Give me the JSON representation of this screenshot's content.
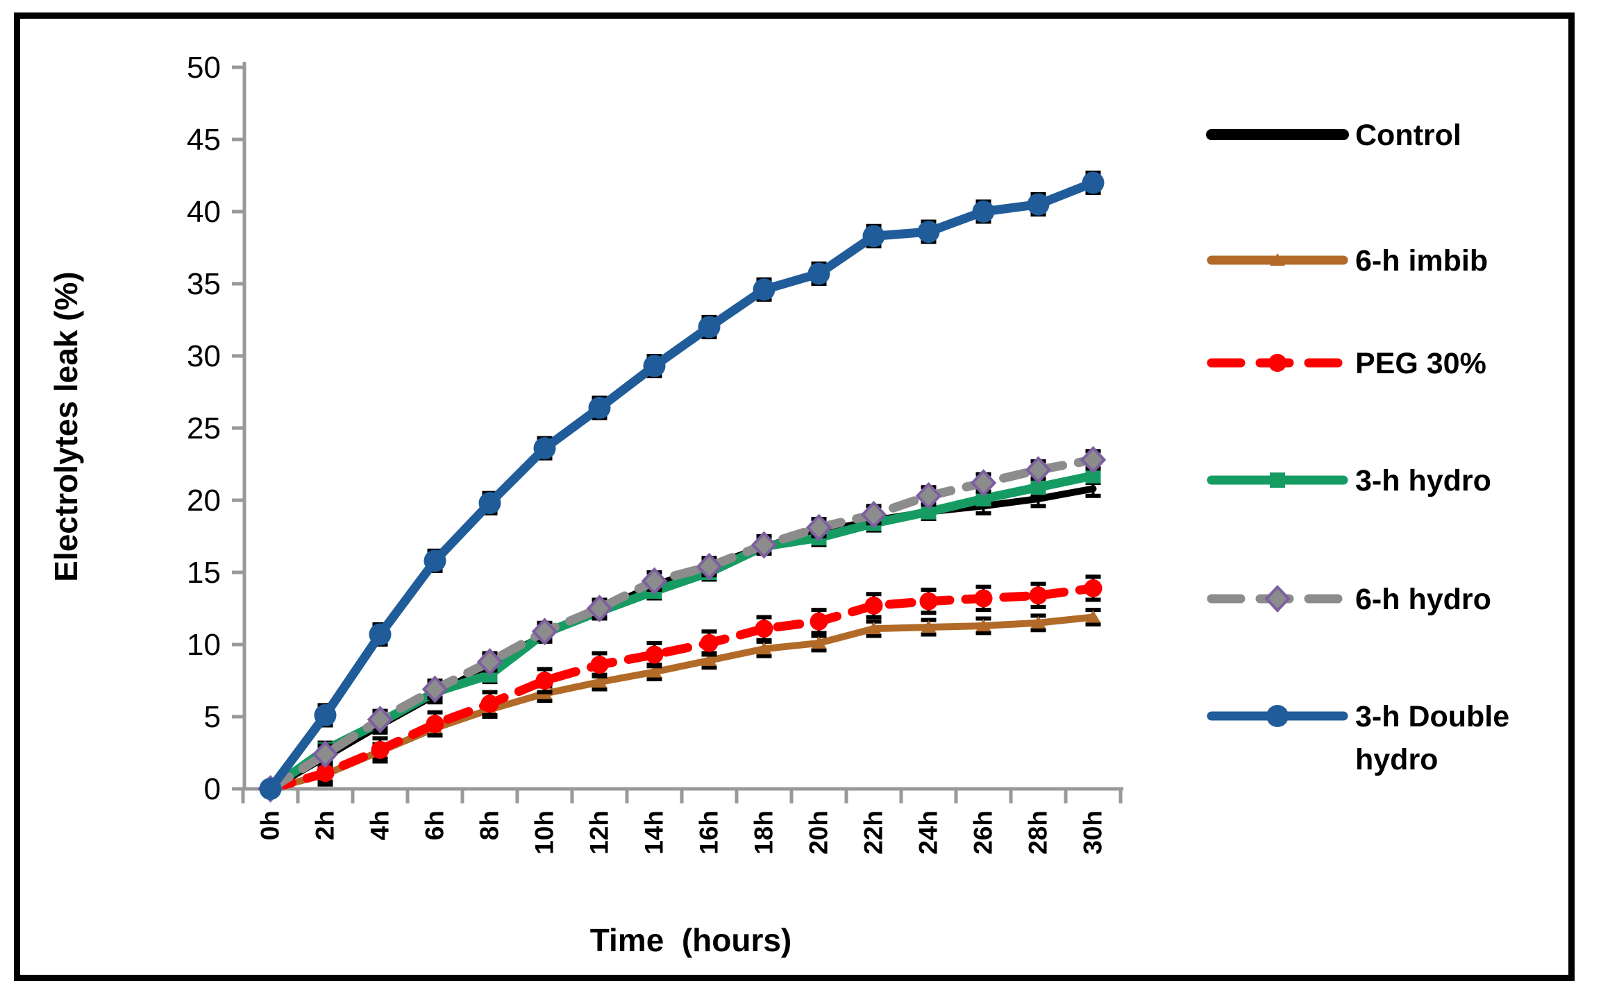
{
  "figure": {
    "y_axis_title": "Electrolytes leak (%)",
    "x_axis_title": "Time  (hours)"
  },
  "chart_data": {
    "type": "line",
    "title": "",
    "xlabel": "Time  (hours)",
    "ylabel": "Electrolytes leak (%)",
    "categories": [
      "0h",
      "2h",
      "4h",
      "6h",
      "8h",
      "10h",
      "12h",
      "14h",
      "16h",
      "18h",
      "20h",
      "22h",
      "24h",
      "26h",
      "28h",
      "30h"
    ],
    "ylim": [
      0,
      50
    ],
    "ytick_step": 5,
    "grid": false,
    "legend_position": "right",
    "axis_color": "#999999",
    "error_bar_color": "#000000",
    "series": [
      {
        "name": "Control",
        "color": "#000000",
        "dash": "solid",
        "marker": "none",
        "error": 0.5,
        "values": [
          0,
          2.2,
          4.4,
          6.5,
          8.6,
          10.7,
          12.4,
          14.1,
          15.4,
          16.8,
          17.8,
          18.6,
          19.2,
          19.6,
          20.1,
          20.8
        ]
      },
      {
        "name": "6-h imbib",
        "color": "#b26a28",
        "dash": "solid",
        "marker": "triangle",
        "error": 0.5,
        "values": [
          0,
          1.0,
          2.6,
          4.2,
          5.5,
          6.6,
          7.4,
          8.1,
          8.9,
          9.7,
          10.1,
          11.1,
          11.2,
          11.3,
          11.5,
          11.9
        ]
      },
      {
        "name": "PEG 30%",
        "color": "#fe0000",
        "dash": "dashed",
        "marker": "circle",
        "error": 0.8,
        "values": [
          0,
          1.1,
          2.7,
          4.5,
          5.9,
          7.5,
          8.6,
          9.3,
          10.1,
          11.1,
          11.6,
          12.7,
          13.0,
          13.2,
          13.4,
          13.9
        ]
      },
      {
        "name": "3-h hydro",
        "color": "#169c62",
        "dash": "solid",
        "marker": "square",
        "error": 0.5,
        "values": [
          0,
          2.7,
          4.6,
          6.7,
          7.9,
          10.8,
          12.3,
          13.7,
          15.0,
          16.8,
          17.4,
          18.4,
          19.2,
          20.1,
          20.9,
          21.7
        ]
      },
      {
        "name": "6-h hydro",
        "color": "#8c8c8c",
        "dash": "dashed",
        "marker": "diamond",
        "marker_fill": "#8c8c8c",
        "marker_stroke": "#7d5fa0",
        "error": 0.6,
        "values": [
          0,
          2.4,
          4.8,
          6.9,
          8.8,
          10.9,
          12.5,
          14.4,
          15.4,
          16.9,
          18.1,
          19.0,
          20.3,
          21.2,
          22.1,
          22.8
        ]
      },
      {
        "name": "3-h Double\nhydro",
        "color": "#1f5c99",
        "dash": "solid",
        "marker": "circle",
        "error": 0.7,
        "values": [
          0,
          5.1,
          10.7,
          15.8,
          19.8,
          23.6,
          26.4,
          29.3,
          32.0,
          34.6,
          35.7,
          38.3,
          38.6,
          40.0,
          40.5,
          42.0
        ]
      }
    ]
  }
}
